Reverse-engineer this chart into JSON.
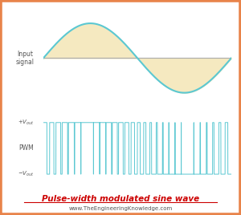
{
  "bg_color": "#ffffff",
  "border_color": "#e8834a",
  "sine_color": "#5bc8d2",
  "sine_fill_color": "#f5e9c0",
  "pwm_color": "#5bc8d2",
  "zero_line_color": "#aaaaaa",
  "title_text": "Pulse-width modulated sine wave",
  "title_color": "#cc0000",
  "website_text": "www.TheEngineeringKnowledge.com",
  "website_color": "#555555",
  "input_signal_label": "Input\nsignal",
  "pwm_label": "PWM",
  "label_color": "#555555",
  "num_pwm_pulses": 30,
  "sine_amplitude": 1.0,
  "pwm_amplitude": 1.0
}
